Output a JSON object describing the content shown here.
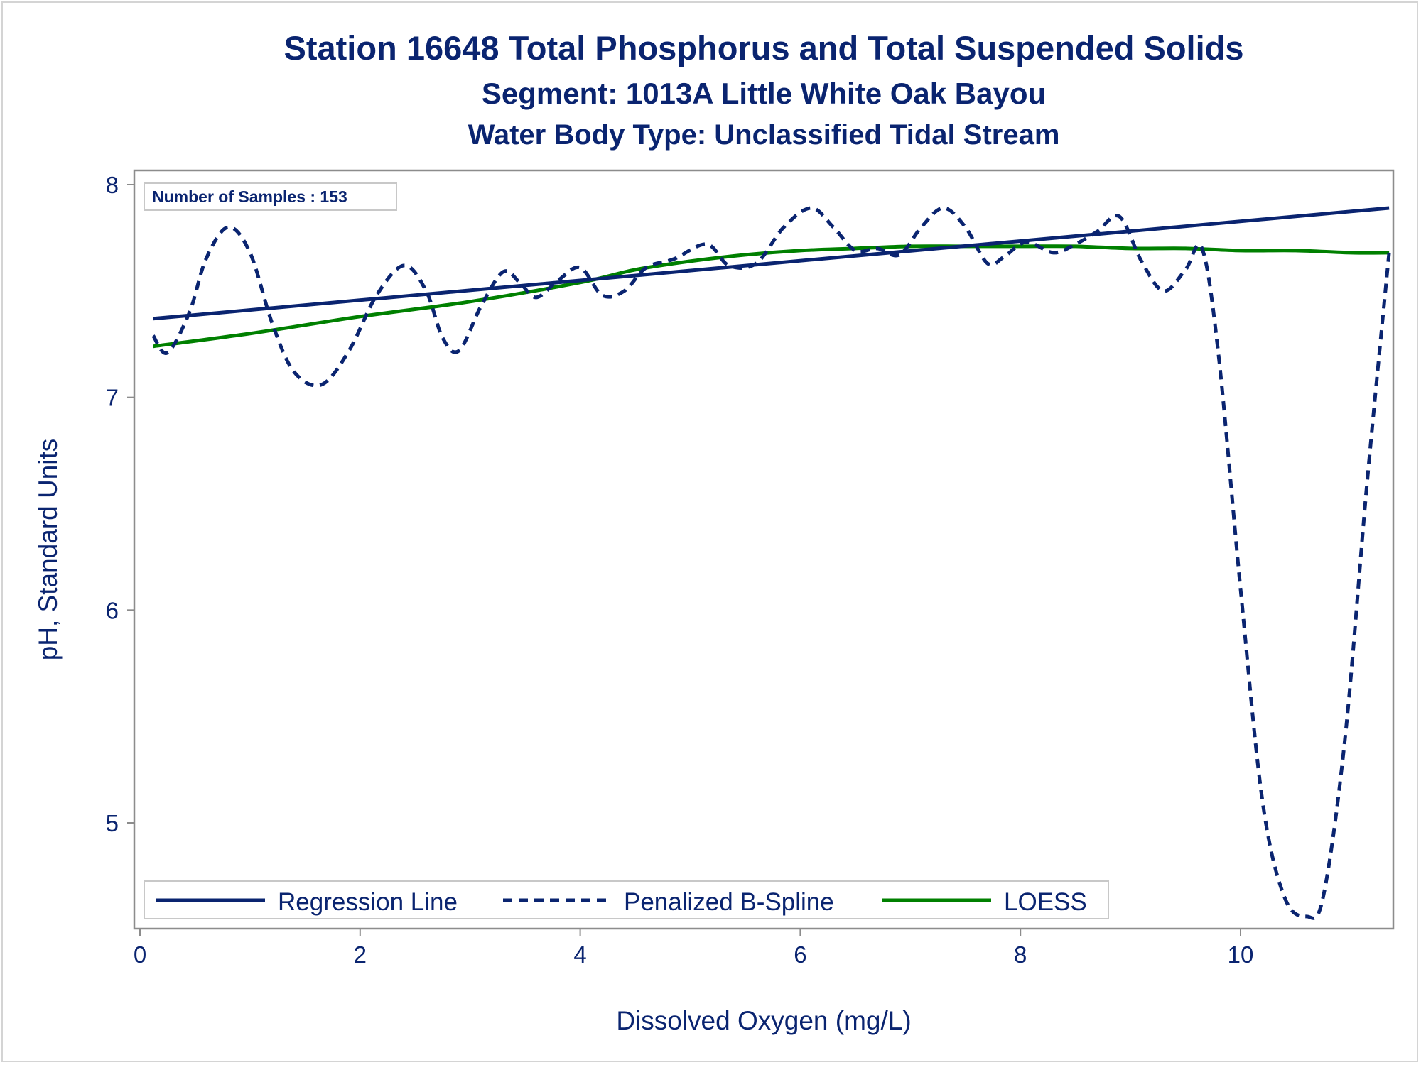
{
  "title": "Station 16648  Total Phosphorus and Total Suspended Solids",
  "subtitle": "Segment: 1013A  Little White Oak Bayou",
  "subtitle2": "Water Body Type: Unclassified Tidal Stream",
  "inset_label": "Number of Samples : 153",
  "colors": {
    "text": "#0a2470",
    "regression": "#0a2470",
    "spline": "#0a2470",
    "loess": "#008000",
    "axis": "#8c8c8c"
  },
  "chart_data": {
    "type": "line",
    "xlabel": "Dissolved Oxygen (mg/L)",
    "ylabel": "pH, Standard Units",
    "xlim": [
      0,
      11.5
    ],
    "ylim": [
      4.5,
      8.05
    ],
    "x_ticks": [
      0,
      2,
      4,
      6,
      8,
      10
    ],
    "y_ticks": [
      5,
      6,
      7,
      8
    ],
    "x_tick_labels": [
      "0",
      "2",
      "4",
      "6",
      "8",
      "10"
    ],
    "y_tick_labels": [
      "5",
      "6",
      "7",
      "8"
    ],
    "legend_position": "bottom-left inside",
    "series": [
      {
        "name": "Regression Line",
        "style": "solid",
        "x": [
          0.12,
          11.35
        ],
        "y": [
          7.37,
          7.89
        ]
      },
      {
        "name": "Penalized B-Spline",
        "style": "dashed",
        "x": [
          0.12,
          0.25,
          0.45,
          0.6,
          0.8,
          1.0,
          1.2,
          1.4,
          1.65,
          1.9,
          2.15,
          2.4,
          2.6,
          2.75,
          2.9,
          3.1,
          3.3,
          3.45,
          3.6,
          3.8,
          4.0,
          4.2,
          4.4,
          4.6,
          4.85,
          5.15,
          5.35,
          5.6,
          5.85,
          6.1,
          6.3,
          6.5,
          6.7,
          6.9,
          7.1,
          7.3,
          7.5,
          7.7,
          7.85,
          8.05,
          8.3,
          8.5,
          8.7,
          8.9,
          9.1,
          9.3,
          9.5,
          9.65,
          9.8,
          10.0,
          10.2,
          10.4,
          10.6,
          10.75,
          10.95,
          11.15,
          11.35
        ],
        "y": [
          7.29,
          7.21,
          7.4,
          7.65,
          7.8,
          7.68,
          7.35,
          7.12,
          7.06,
          7.22,
          7.48,
          7.62,
          7.5,
          7.28,
          7.22,
          7.43,
          7.59,
          7.54,
          7.47,
          7.55,
          7.61,
          7.48,
          7.5,
          7.61,
          7.65,
          7.72,
          7.62,
          7.63,
          7.8,
          7.89,
          7.8,
          7.69,
          7.7,
          7.67,
          7.8,
          7.89,
          7.8,
          7.63,
          7.66,
          7.73,
          7.68,
          7.72,
          7.78,
          7.85,
          7.64,
          7.5,
          7.6,
          7.7,
          7.2,
          6.1,
          5.1,
          4.65,
          4.56,
          4.65,
          5.4,
          6.6,
          7.68
        ]
      },
      {
        "name": "LOESS",
        "style": "solid",
        "x": [
          0.12,
          1.0,
          2.0,
          3.0,
          4.0,
          4.5,
          5.0,
          5.5,
          6.0,
          6.5,
          7.0,
          7.5,
          8.0,
          8.5,
          9.0,
          9.5,
          10.0,
          10.5,
          11.0,
          11.35
        ],
        "y": [
          7.24,
          7.3,
          7.38,
          7.45,
          7.54,
          7.6,
          7.64,
          7.67,
          7.69,
          7.7,
          7.71,
          7.71,
          7.71,
          7.71,
          7.7,
          7.7,
          7.69,
          7.69,
          7.68,
          7.68
        ]
      }
    ]
  }
}
